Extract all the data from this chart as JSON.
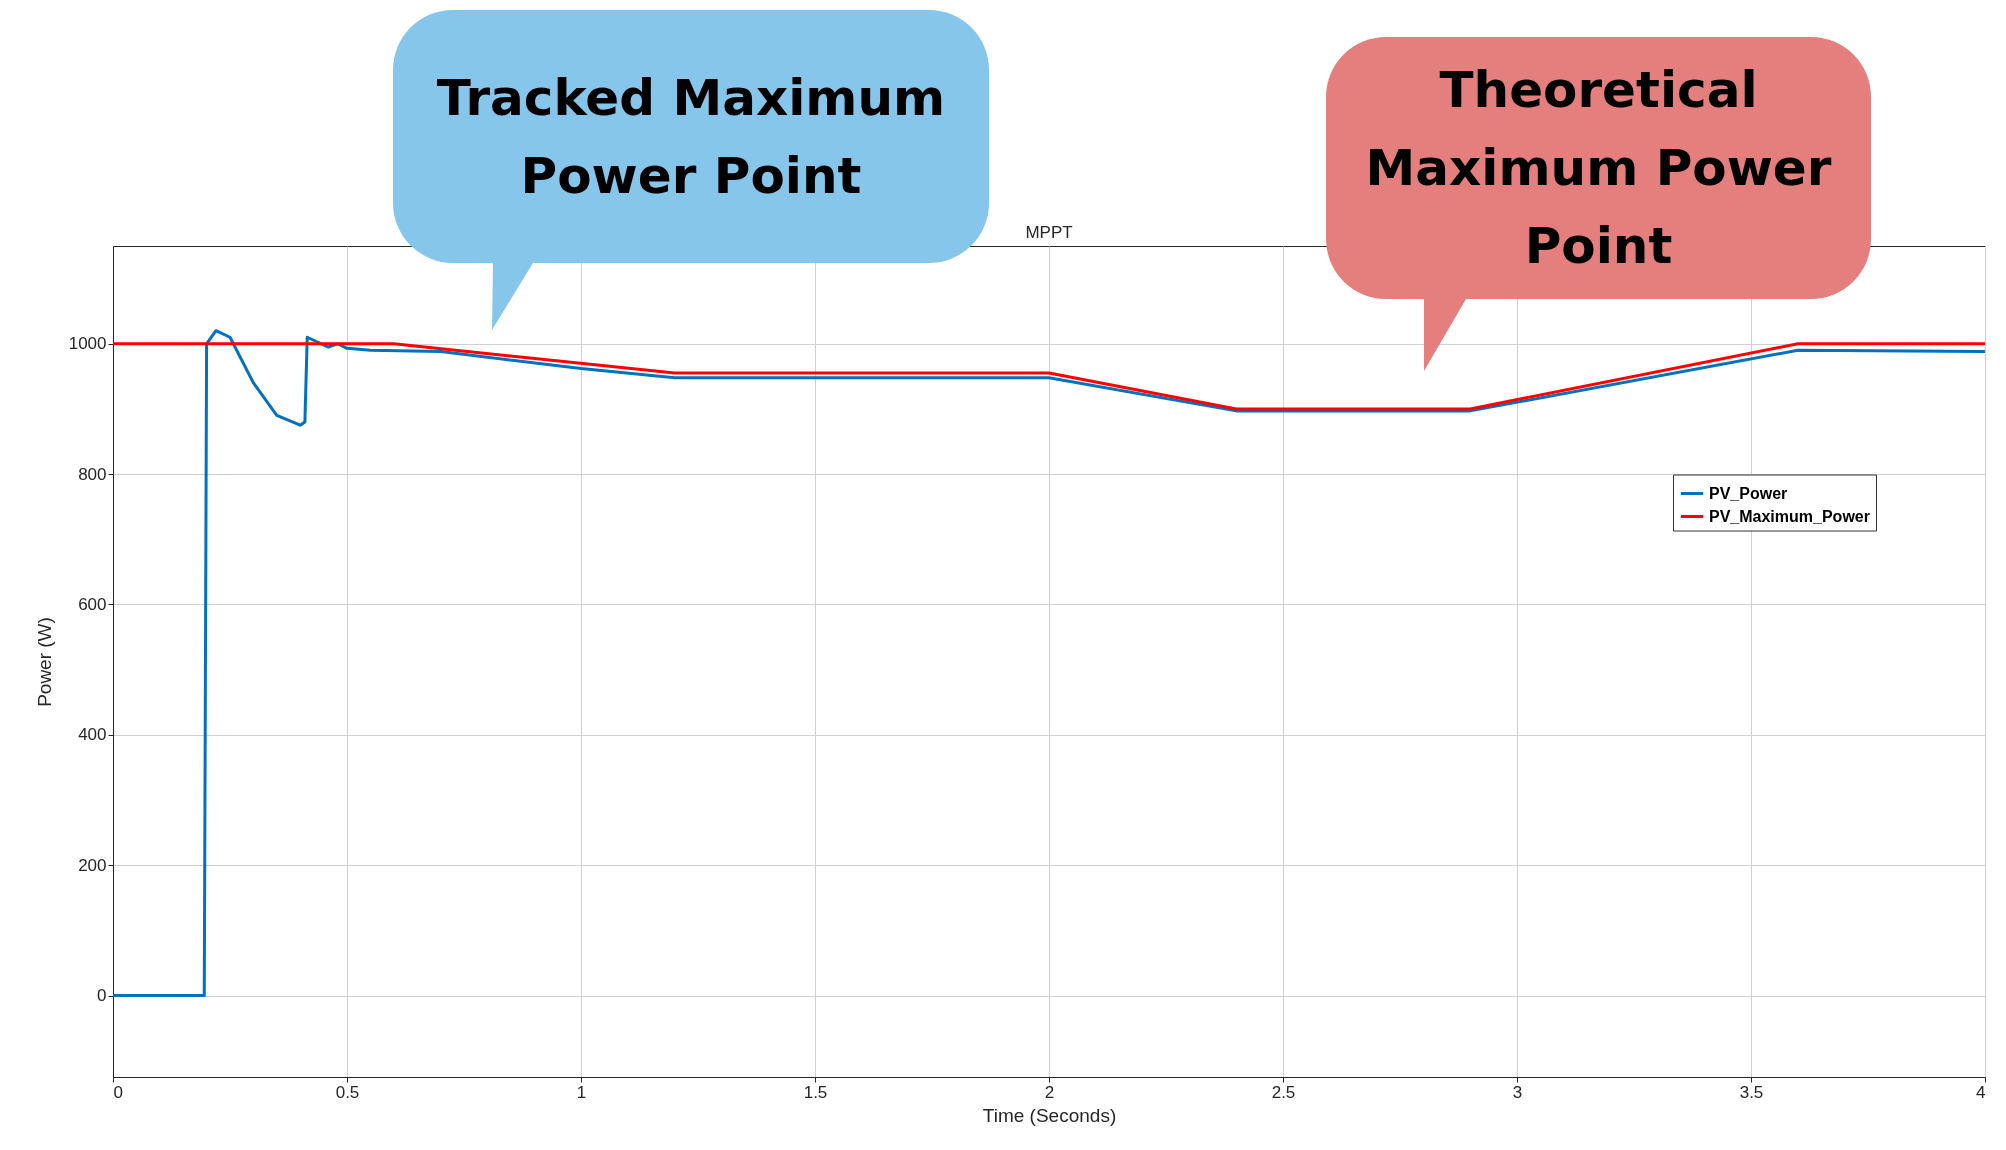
{
  "chart_data": {
    "type": "line",
    "title": "MPPT",
    "xlabel": "Time (Seconds)",
    "ylabel": "Power (W)",
    "annotations": [
      "Tracked Maximum Power Point",
      "Theoretical Maximum Power Point"
    ],
    "series": [
      {
        "name": "PV_Power",
        "color": "#0072bd",
        "x": [
          0,
          0.195,
          0.2,
          0.22,
          0.25,
          0.3,
          0.35,
          0.4,
          0.41,
          0.415,
          0.43,
          0.46,
          0.48,
          0.5,
          0.55,
          0.7,
          1.0,
          1.2,
          2.0,
          2.4,
          2.9,
          3.6,
          4.0
        ],
        "values": [
          0,
          0,
          1000,
          1020,
          1010,
          940,
          890,
          875,
          880,
          1010,
          1005,
          995,
          1000,
          993,
          990,
          988,
          962,
          948,
          948,
          897,
          897,
          990,
          988
        ]
      },
      {
        "name": "PV_Maximum_Power",
        "color": "#ff0000",
        "x": [
          0,
          0.6,
          1.2,
          2.0,
          2.4,
          2.9,
          3.6,
          4.0
        ],
        "values": [
          1000,
          1000,
          955,
          955,
          900,
          900,
          1000,
          1000
        ]
      }
    ],
    "xlim": [
      0,
      4
    ],
    "xticks": [
      0,
      0.5,
      1,
      1.5,
      2,
      2.5,
      3,
      3.5,
      4
    ],
    "ylim": [
      -125,
      1150
    ],
    "yticks": [
      0,
      200,
      400,
      600,
      800,
      1000
    ],
    "grid": true,
    "legend": "right"
  }
}
